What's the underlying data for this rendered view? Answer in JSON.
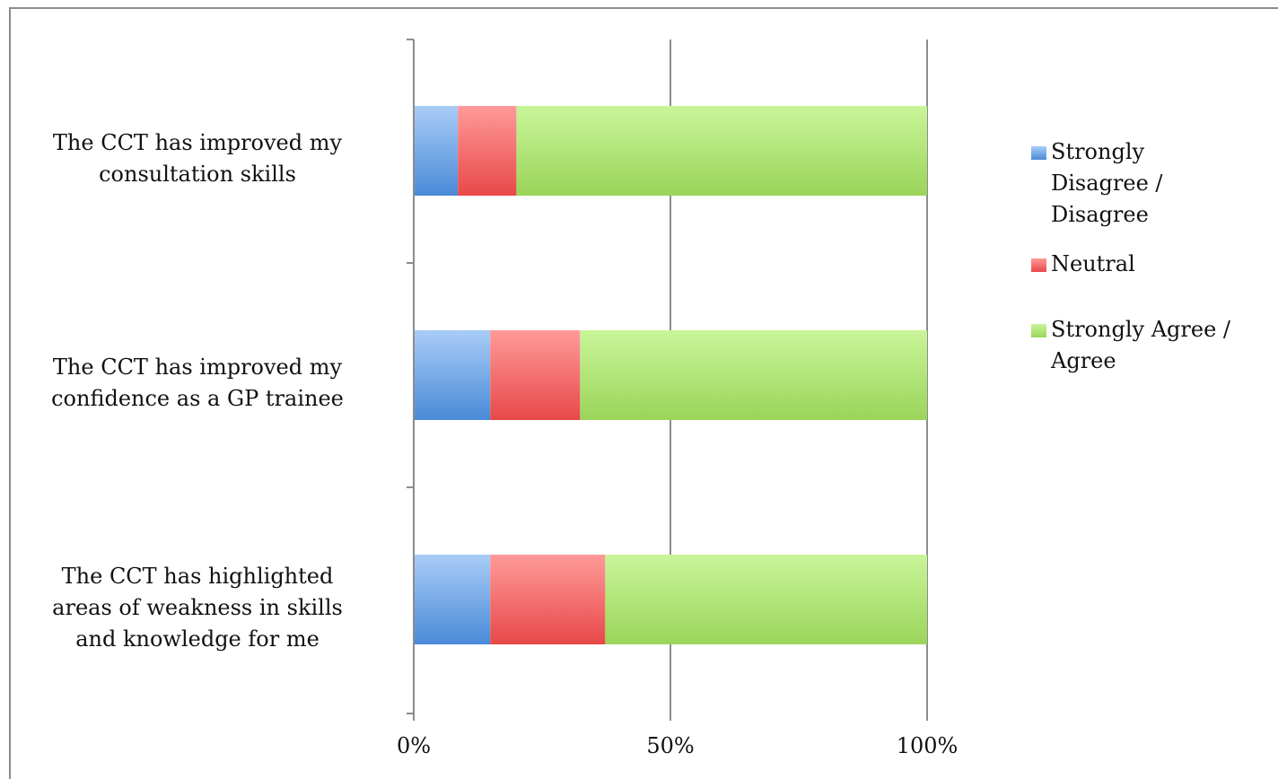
{
  "chart_data": {
    "type": "bar",
    "orientation": "horizontal",
    "stacked": "percent",
    "title": "",
    "xlabel": "",
    "ylabel": "",
    "xlim": [
      0,
      100
    ],
    "x_ticks": [
      "0%",
      "50%",
      "100%"
    ],
    "grid": true,
    "legend_position": "right",
    "categories": [
      "The CCT has improved my consultation skills",
      "The CCT has improved my confidence as a GP trainee",
      "The CCT has highlighted areas of weakness in skills and knowledge for me"
    ],
    "category_label_lines": [
      [
        "The CCT has improved my",
        "consultation skills"
      ],
      [
        "The CCT has improved my",
        "confidence as a GP trainee"
      ],
      [
        "The CCT has highlighted",
        "areas of weakness in skills",
        "and knowledge for me"
      ]
    ],
    "series": [
      {
        "name": "Strongly Disagree / Disagree",
        "legend_lines": [
          "Strongly",
          "Disagree /",
          "Disagree"
        ],
        "color": "#5b9bd5",
        "values": [
          8.6,
          14.9,
          14.9
        ]
      },
      {
        "name": "Neutral",
        "legend_lines": [
          "Neutral"
        ],
        "color": "#f05a5a",
        "values": [
          11.4,
          17.5,
          22.4
        ]
      },
      {
        "name": "Strongly Agree / Agree",
        "legend_lines": [
          "Strongly Agree /",
          "Agree"
        ],
        "color": "#9bd45a",
        "values": [
          80.0,
          67.6,
          62.7
        ]
      }
    ]
  }
}
